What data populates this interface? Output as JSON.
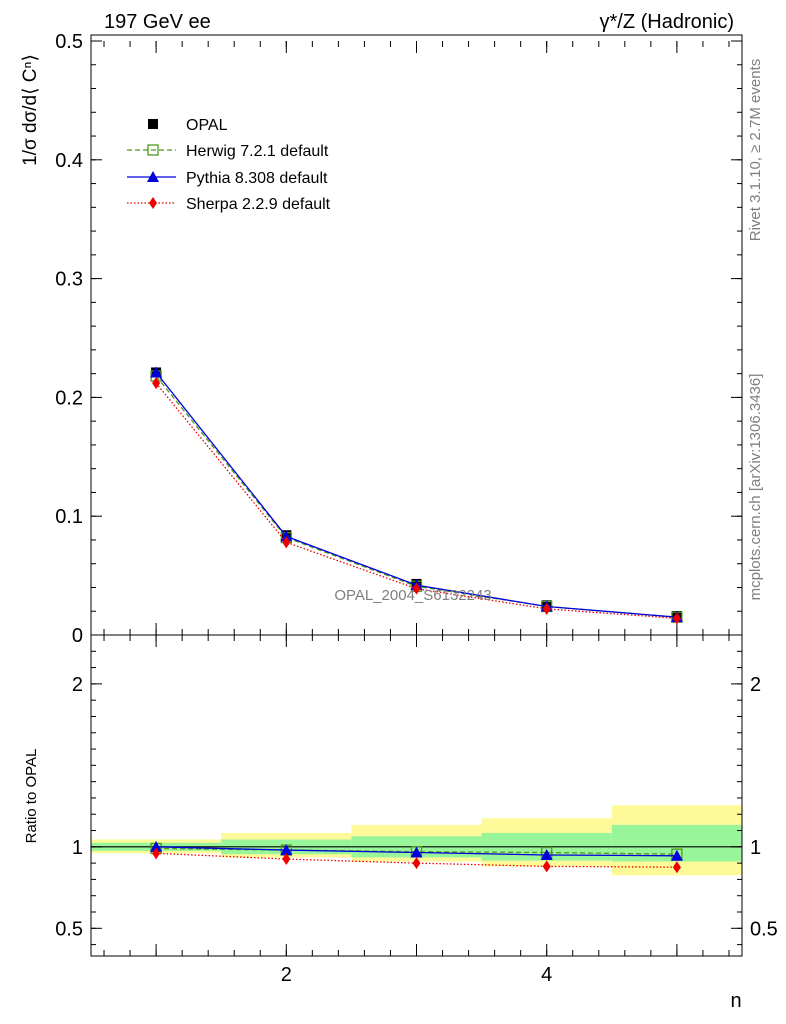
{
  "header": {
    "left": "197 GeV ee",
    "right": "γ*/Z (Hadronic)"
  },
  "side_labels": {
    "rivet": "Rivet 3.1.10, ≥ 2.7M events",
    "mcplots": "mcplots.cern.ch [arXiv:1306.3436]"
  },
  "watermark": "OPAL_2004_S6132243",
  "legend": {
    "opal": "OPAL",
    "herwig": "Herwig 7.2.1 default",
    "pythia": "Pythia 8.308 default",
    "sherpa": "Sherpa 2.2.9 default"
  },
  "colors": {
    "opal": "#000000",
    "herwig": "#4f9a1c",
    "pythia": "#0000dd",
    "sherpa": "#ee0000",
    "band_inner": "#99f599",
    "band_outer": "#fffa99"
  },
  "chart_data": [
    {
      "type": "line",
      "panel": "main",
      "ylabel": "1/σ dσ/d⟨ Cⁿ⟩",
      "xlim": [
        0.5,
        5.5
      ],
      "ylim": [
        0,
        0.5
      ],
      "yticks": [
        {
          "v": 0.0,
          "label": "0"
        },
        {
          "v": 0.1,
          "label": "0.1"
        },
        {
          "v": 0.2,
          "label": "0.2"
        },
        {
          "v": 0.3,
          "label": "0.3"
        },
        {
          "v": 0.4,
          "label": "0.4"
        },
        {
          "v": 0.5,
          "label": "0.5"
        }
      ],
      "x": [
        1,
        2,
        3,
        4,
        5
      ],
      "series": [
        {
          "name": "OPAL",
          "key": "opal",
          "values": [
            0.221,
            0.084,
            0.043,
            0.025,
            0.016
          ]
        },
        {
          "name": "Herwig 7.2.1 default",
          "key": "herwig",
          "values": [
            0.218,
            0.082,
            0.041,
            0.024,
            0.015
          ]
        },
        {
          "name": "Pythia 8.308 default",
          "key": "pythia",
          "values": [
            0.221,
            0.083,
            0.042,
            0.024,
            0.015
          ]
        },
        {
          "name": "Sherpa 2.2.9 default",
          "key": "sherpa",
          "values": [
            0.212,
            0.078,
            0.039,
            0.022,
            0.014
          ]
        }
      ]
    },
    {
      "type": "line",
      "panel": "ratio",
      "ylabel": "Ratio to OPAL",
      "xlabel": "n",
      "xlim": [
        0.5,
        5.5
      ],
      "ylim": [
        0.33,
        2.3
      ],
      "yticks": [
        {
          "v": 0.5,
          "label": "0.5"
        },
        {
          "v": 1,
          "label": "1"
        },
        {
          "v": 2,
          "label": "2"
        }
      ],
      "xticks": [
        {
          "v": 2,
          "label": "2"
        },
        {
          "v": 4,
          "label": "4"
        }
      ],
      "x": [
        1,
        2,
        3,
        4,
        5
      ],
      "bands": {
        "inner": [
          [
            0.975,
            1.025
          ],
          [
            0.955,
            1.045
          ],
          [
            0.935,
            1.065
          ],
          [
            0.915,
            1.085
          ],
          [
            0.91,
            1.135
          ]
        ],
        "outer": [
          [
            0.96,
            1.045
          ],
          [
            0.935,
            1.085
          ],
          [
            0.91,
            1.135
          ],
          [
            0.88,
            1.175
          ],
          [
            0.825,
            1.255
          ]
        ]
      },
      "series": [
        {
          "name": "Herwig 7.2.1 default",
          "key": "herwig",
          "values": [
            0.99,
            0.98,
            0.97,
            0.965,
            0.955
          ]
        },
        {
          "name": "Pythia 8.308 default",
          "key": "pythia",
          "values": [
            1.0,
            0.98,
            0.965,
            0.95,
            0.945
          ]
        },
        {
          "name": "Sherpa 2.2.9 default",
          "key": "sherpa",
          "values": [
            0.96,
            0.925,
            0.9,
            0.88,
            0.875
          ]
        }
      ]
    }
  ]
}
